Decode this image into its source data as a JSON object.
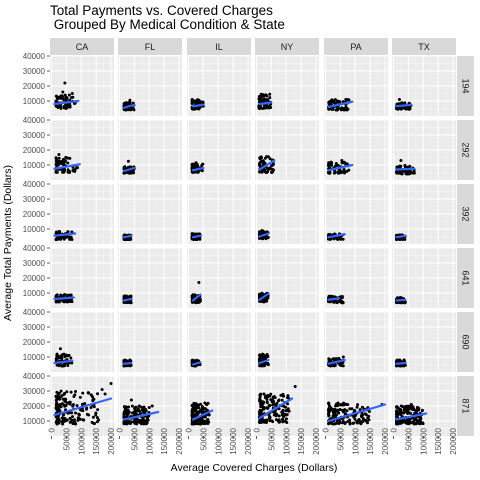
{
  "chart_data": {
    "type": "scatter",
    "title_lines": [
      "Total Payments vs. Covered Charges",
      " Grouped By Medical Condition & State"
    ],
    "xlabel": "Average Covered Charges (Dollars)",
    "ylabel": "Average Total Payments (Dollars)",
    "columns": [
      "CA",
      "FL",
      "IL",
      "NY",
      "PA",
      "TX"
    ],
    "rows": [
      "194",
      "292",
      "392",
      "641",
      "690",
      "871"
    ],
    "xlim": [
      -5000,
      210000
    ],
    "ylim": [
      0,
      40000
    ],
    "x_ticks": [
      0,
      50000,
      100000,
      150000,
      200000
    ],
    "x_tick_labels": [
      "0",
      "50000",
      "100000",
      "150000",
      "200000"
    ],
    "y_ticks": [
      10000,
      20000,
      30000,
      40000
    ],
    "y_tick_labels": [
      "10000",
      "20000",
      "30000",
      "40000"
    ],
    "grid": true,
    "point_color": "#000000",
    "trend_color": "#3366ff",
    "panel_bg": "#ebebeb",
    "strip_bg": "#d9d9d9",
    "panels": [
      {
        "col": "CA",
        "row": "194",
        "cx": [
          15000,
          80000
        ],
        "cy": [
          5000,
          14000
        ],
        "fit": [
          [
            10000,
            8000
          ],
          [
            90000,
            10000
          ]
        ],
        "outliers": [
          [
            45000,
            22000
          ],
          [
            38000,
            16000
          ],
          [
            70000,
            15000
          ]
        ]
      },
      {
        "col": "FL",
        "row": "194",
        "cx": [
          15000,
          50000
        ],
        "cy": [
          4000,
          9000
        ],
        "fit": [
          [
            15000,
            5500
          ],
          [
            50000,
            7500
          ]
        ],
        "outliers": [
          [
            35000,
            10500
          ]
        ]
      },
      {
        "col": "IL",
        "row": "194",
        "cx": [
          12000,
          50000
        ],
        "cy": [
          4500,
          11000
        ],
        "fit": [
          [
            15000,
            6500
          ],
          [
            50000,
            7500
          ]
        ],
        "outliers": []
      },
      {
        "col": "NY",
        "row": "194",
        "cx": [
          8000,
          50000
        ],
        "cy": [
          5000,
          15000
        ],
        "fit": [
          [
            10000,
            8000
          ],
          [
            50000,
            9000
          ]
        ],
        "outliers": []
      },
      {
        "col": "PA",
        "row": "194",
        "cx": [
          10000,
          80000
        ],
        "cy": [
          4000,
          11000
        ],
        "fit": [
          [
            10000,
            6000
          ],
          [
            90000,
            9500
          ]
        ],
        "outliers": [
          [
            75000,
            11000
          ]
        ]
      },
      {
        "col": "TX",
        "row": "194",
        "cx": [
          10000,
          60000
        ],
        "cy": [
          4500,
          9000
        ],
        "fit": [
          [
            10000,
            6500
          ],
          [
            60000,
            7500
          ]
        ],
        "outliers": [
          [
            20000,
            11000
          ]
        ]
      },
      {
        "col": "CA",
        "row": "292",
        "cx": [
          15000,
          90000
        ],
        "cy": [
          5000,
          16000
        ],
        "fit": [
          [
            10000,
            7500
          ],
          [
            95000,
            10500
          ]
        ],
        "outliers": [
          [
            25000,
            17000
          ]
        ]
      },
      {
        "col": "FL",
        "row": "292",
        "cx": [
          15000,
          50000
        ],
        "cy": [
          4500,
          9000
        ],
        "fit": [
          [
            15000,
            6000
          ],
          [
            50000,
            8000
          ]
        ],
        "outliers": [
          [
            30000,
            12500
          ]
        ]
      },
      {
        "col": "IL",
        "row": "292",
        "cx": [
          12000,
          50000
        ],
        "cy": [
          5000,
          11000
        ],
        "fit": [
          [
            15000,
            6500
          ],
          [
            50000,
            8000
          ]
        ],
        "outliers": [
          [
            25000,
            11500
          ]
        ]
      },
      {
        "col": "NY",
        "row": "292",
        "cx": [
          10000,
          60000
        ],
        "cy": [
          5000,
          16000
        ],
        "fit": [
          [
            10000,
            7000
          ],
          [
            60000,
            13000
          ]
        ],
        "outliers": [
          [
            40000,
            15500
          ]
        ]
      },
      {
        "col": "PA",
        "row": "292",
        "cx": [
          10000,
          80000
        ],
        "cy": [
          4500,
          12000
        ],
        "fit": [
          [
            10000,
            6500
          ],
          [
            90000,
            10000
          ]
        ],
        "outliers": [
          [
            55000,
            13000
          ]
        ]
      },
      {
        "col": "TX",
        "row": "292",
        "cx": [
          10000,
          70000
        ],
        "cy": [
          4000,
          10000
        ],
        "fit": [
          [
            10000,
            7000
          ],
          [
            70000,
            7500
          ]
        ],
        "outliers": [
          [
            25000,
            13000
          ]
        ]
      },
      {
        "col": "CA",
        "row": "392",
        "cx": [
          15000,
          70000
        ],
        "cy": [
          3000,
          9000
        ],
        "fit": [
          [
            10000,
            5500
          ],
          [
            80000,
            7000
          ]
        ],
        "outliers": []
      },
      {
        "col": "FL",
        "row": "392",
        "cx": [
          15000,
          40000
        ],
        "cy": [
          3000,
          6000
        ],
        "fit": [
          [
            15000,
            4500
          ],
          [
            40000,
            5500
          ]
        ],
        "outliers": []
      },
      {
        "col": "IL",
        "row": "392",
        "cx": [
          12000,
          40000
        ],
        "cy": [
          3000,
          7000
        ],
        "fit": [
          [
            15000,
            4500
          ],
          [
            40000,
            5500
          ]
        ],
        "outliers": []
      },
      {
        "col": "NY",
        "row": "392",
        "cx": [
          10000,
          40000
        ],
        "cy": [
          3500,
          9000
        ],
        "fit": [
          [
            10000,
            5000
          ],
          [
            40000,
            7000
          ]
        ],
        "outliers": []
      },
      {
        "col": "PA",
        "row": "392",
        "cx": [
          10000,
          60000
        ],
        "cy": [
          3000,
          7000
        ],
        "fit": [
          [
            10000,
            4500
          ],
          [
            65000,
            6500
          ]
        ],
        "outliers": []
      },
      {
        "col": "TX",
        "row": "392",
        "cx": [
          10000,
          40000
        ],
        "cy": [
          3000,
          6000
        ],
        "fit": [
          [
            10000,
            4500
          ],
          [
            40000,
            5500
          ]
        ],
        "outliers": []
      },
      {
        "col": "CA",
        "row": "641",
        "cx": [
          15000,
          70000
        ],
        "cy": [
          4000,
          9000
        ],
        "fit": [
          [
            10000,
            6000
          ],
          [
            75000,
            7000
          ]
        ],
        "outliers": []
      },
      {
        "col": "FL",
        "row": "641",
        "cx": [
          15000,
          40000
        ],
        "cy": [
          3500,
          8000
        ],
        "fit": [
          [
            15000,
            5000
          ],
          [
            40000,
            6000
          ]
        ],
        "outliers": []
      },
      {
        "col": "IL",
        "row": "641",
        "cx": [
          12000,
          40000
        ],
        "cy": [
          3500,
          9000
        ],
        "fit": [
          [
            15000,
            5000
          ],
          [
            40000,
            9000
          ]
        ],
        "outliers": [
          [
            35000,
            17000
          ]
        ]
      },
      {
        "col": "NY",
        "row": "641",
        "cx": [
          10000,
          40000
        ],
        "cy": [
          4000,
          10000
        ],
        "fit": [
          [
            10000,
            5500
          ],
          [
            40000,
            9500
          ]
        ],
        "outliers": []
      },
      {
        "col": "PA",
        "row": "641",
        "cx": [
          10000,
          60000
        ],
        "cy": [
          3500,
          8000
        ],
        "fit": [
          [
            10000,
            5500
          ],
          [
            45000,
            6500
          ]
        ],
        "outliers": [
          [
            55000,
            3500
          ]
        ]
      },
      {
        "col": "TX",
        "row": "641",
        "cx": [
          10000,
          40000
        ],
        "cy": [
          3500,
          7000
        ],
        "fit": [
          [
            10000,
            5000
          ],
          [
            40000,
            5500
          ]
        ],
        "outliers": []
      },
      {
        "col": "CA",
        "row": "690",
        "cx": [
          15000,
          70000
        ],
        "cy": [
          4000,
          12000
        ],
        "fit": [
          [
            10000,
            6000
          ],
          [
            70000,
            7500
          ]
        ],
        "outliers": [
          [
            30000,
            15500
          ]
        ]
      },
      {
        "col": "FL",
        "row": "690",
        "cx": [
          15000,
          40000
        ],
        "cy": [
          4000,
          8000
        ],
        "fit": [
          [
            15000,
            5500
          ],
          [
            40000,
            6000
          ]
        ],
        "outliers": []
      },
      {
        "col": "IL",
        "row": "690",
        "cx": [
          12000,
          40000
        ],
        "cy": [
          4000,
          8000
        ],
        "fit": [
          [
            15000,
            5000
          ],
          [
            40000,
            6500
          ]
        ],
        "outliers": []
      },
      {
        "col": "NY",
        "row": "690",
        "cx": [
          10000,
          40000
        ],
        "cy": [
          4000,
          12000
        ],
        "fit": [
          [
            10000,
            6000
          ],
          [
            40000,
            8000
          ]
        ],
        "outliers": []
      },
      {
        "col": "PA",
        "row": "690",
        "cx": [
          10000,
          60000
        ],
        "cy": [
          4000,
          9000
        ],
        "fit": [
          [
            10000,
            5500
          ],
          [
            65000,
            8000
          ]
        ],
        "outliers": [
          [
            60000,
            10000
          ]
        ]
      },
      {
        "col": "TX",
        "row": "690",
        "cx": [
          10000,
          40000
        ],
        "cy": [
          4000,
          8000
        ],
        "fit": [
          [
            10000,
            5500
          ],
          [
            40000,
            6000
          ]
        ],
        "outliers": []
      },
      {
        "col": "CA",
        "row": "871",
        "cx": [
          15000,
          160000
        ],
        "cy": [
          8000,
          30000
        ],
        "fit": [
          [
            10000,
            14000
          ],
          [
            200000,
            25000
          ]
        ],
        "outliers": [
          [
            200000,
            35000
          ],
          [
            170000,
            31000
          ],
          [
            180000,
            28000
          ]
        ]
      },
      {
        "col": "FL",
        "row": "871",
        "cx": [
          15000,
          100000
        ],
        "cy": [
          8000,
          20000
        ],
        "fit": [
          [
            15000,
            11000
          ],
          [
            130000,
            16000
          ]
        ],
        "outliers": [
          [
            40000,
            24000
          ],
          [
            110000,
            20000
          ]
        ]
      },
      {
        "col": "IL",
        "row": "871",
        "cx": [
          12000,
          70000
        ],
        "cy": [
          8000,
          22000
        ],
        "fit": [
          [
            15000,
            11000
          ],
          [
            80000,
            17000
          ]
        ],
        "outliers": [
          [
            55000,
            22000
          ]
        ]
      },
      {
        "col": "NY",
        "row": "871",
        "cx": [
          10000,
          110000
        ],
        "cy": [
          9000,
          28000
        ],
        "fit": [
          [
            10000,
            12000
          ],
          [
            120000,
            25000
          ]
        ],
        "outliers": [
          [
            130000,
            33000
          ],
          [
            25000,
            28000
          ]
        ]
      },
      {
        "col": "PA",
        "row": "871",
        "cx": [
          10000,
          150000
        ],
        "cy": [
          8000,
          22000
        ],
        "fit": [
          [
            10000,
            10000
          ],
          [
            200000,
            21000
          ]
        ],
        "outliers": [
          [
            190000,
            21000
          ]
        ]
      },
      {
        "col": "TX",
        "row": "871",
        "cx": [
          10000,
          100000
        ],
        "cy": [
          8000,
          20000
        ],
        "fit": [
          [
            10000,
            11000
          ],
          [
            110000,
            15000
          ]
        ],
        "outliers": [
          [
            60000,
            21000
          ]
        ]
      }
    ]
  }
}
